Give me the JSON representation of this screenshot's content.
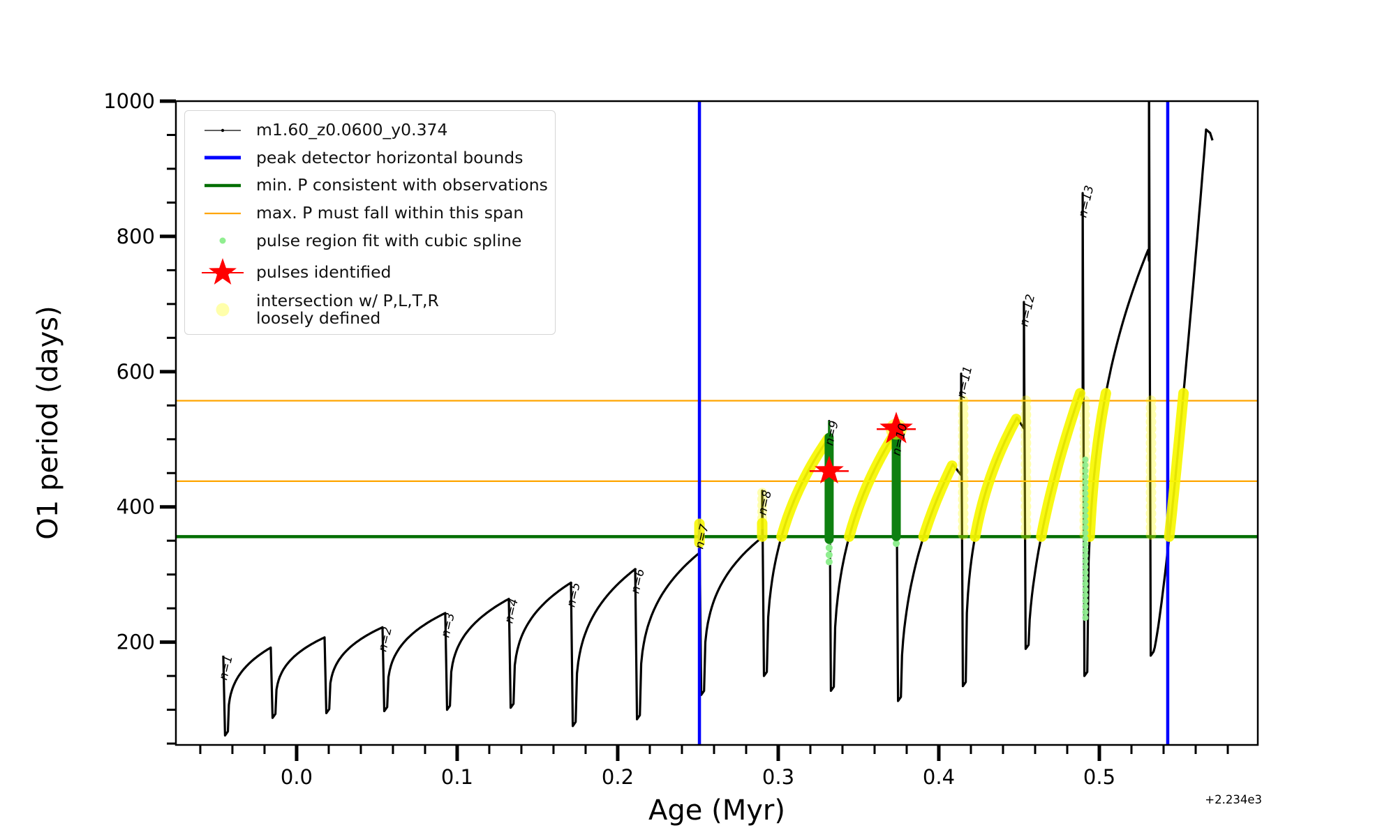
{
  "axes": {
    "xlabel": "Age (Myr)",
    "ylabel": "O1 period (days)",
    "x_offset_label": "+2.234e3",
    "xlim": [
      -0.0752,
      0.5987
    ],
    "ylim": [
      48,
      1000
    ],
    "x_ticks": [
      {
        "v": 0.0,
        "label": "0.0"
      },
      {
        "v": 0.1,
        "label": "0.1"
      },
      {
        "v": 0.2,
        "label": "0.2"
      },
      {
        "v": 0.3,
        "label": "0.3"
      },
      {
        "v": 0.4,
        "label": "0.4"
      },
      {
        "v": 0.5,
        "label": "0.5"
      }
    ],
    "x_minor_step": 0.02,
    "y_ticks": [
      {
        "v": 200,
        "label": "200"
      },
      {
        "v": 400,
        "label": "400"
      },
      {
        "v": 600,
        "label": "600"
      },
      {
        "v": 800,
        "label": "800"
      },
      {
        "v": 1000,
        "label": "1000"
      }
    ],
    "y_minor_step": 50,
    "grid": false
  },
  "colors": {
    "curve": "#000000",
    "peak_bounds": "#0000ff",
    "min_P": "#006e00",
    "max_P": "#ffa500",
    "pulse_fit": "#90ee90",
    "pulse_star": "#ff0000",
    "intersection": "#f7f700",
    "intersection_pale": "rgba(255,255,0,0.32)",
    "column_green": "#0e8010"
  },
  "legend": {
    "entries": [
      {
        "label": "m1.60_z0.0600_y0.374",
        "type": "line-dot",
        "color": "#000000"
      },
      {
        "label": "peak detector horizontal bounds",
        "type": "line",
        "color": "#0000ff",
        "lw": 5
      },
      {
        "label": "min. P consistent with observations",
        "type": "line",
        "color": "#006e00",
        "lw": 4.5
      },
      {
        "label": "max. P must fall within this span",
        "type": "line",
        "color": "#ffa500",
        "lw": 2.2
      },
      {
        "label": "pulse region fit with cubic spline",
        "type": "dot",
        "color": "#90ee90",
        "r": 4.5
      },
      {
        "label": "pulses identified",
        "type": "star",
        "color": "#ff0000"
      },
      {
        "label": "intersection w/ P,L,T,R\nloosely defined",
        "type": "dot",
        "color": "rgba(255,255,0,0.33)",
        "r": 9.5
      }
    ]
  },
  "chart_data": {
    "type": "line",
    "title": "",
    "series": [
      {
        "name": "m1.60_z0.0600_y0.374",
        "color": "#000000"
      }
    ],
    "xlabel": "Age (Myr)",
    "ylabel": "O1 period (days)",
    "x_axis_offset": "+2.234e3",
    "xlim": [
      -0.0752,
      0.5987
    ],
    "ylim": [
      48,
      1000
    ],
    "reference_lines": {
      "peak_detector_bounds_age": [
        0.2509,
        0.5426
      ],
      "min_P_days": 356,
      "max_P_span_days": [
        438,
        557
      ]
    },
    "pulses_identified": [
      {
        "pulse": "n=9",
        "age": 0.332,
        "P_days": 453
      },
      {
        "pulse": "n=10",
        "age": 0.3735,
        "P_days": 515
      }
    ],
    "peaks": [
      {
        "label": "n=1",
        "age": -0.046,
        "P_days": 180
      },
      {
        "label": "n=2",
        "age": 0.053,
        "P_days": 222
      },
      {
        "label": "n=3",
        "age": 0.093,
        "P_days": 243
      },
      {
        "label": "n=4",
        "age": 0.132,
        "P_days": 264
      },
      {
        "label": "n=5",
        "age": 0.171,
        "P_days": 288
      },
      {
        "label": "n=6",
        "age": 0.211,
        "P_days": 308
      },
      {
        "label": "n=7",
        "age": 0.251,
        "P_days": 374
      },
      {
        "label": "n=8",
        "age": 0.29,
        "P_days": 424
      },
      {
        "label": "n=9",
        "age": 0.332,
        "P_days": 527
      },
      {
        "label": "n=10",
        "age": 0.373,
        "P_days": 515
      },
      {
        "label": "n=11",
        "age": 0.414,
        "P_days": 597
      },
      {
        "label": "n=12",
        "age": 0.453,
        "P_days": 703
      },
      {
        "label": "n=13",
        "age": 0.49,
        "P_days": 864
      }
    ],
    "cycles": [
      {
        "a": -0.0457,
        "p": 180,
        "d": 62,
        "k": 0.3,
        "label": "n=1",
        "first": true
      },
      {
        "a": -0.0161,
        "p": 192,
        "d": 88,
        "k": 0.3
      },
      {
        "a": 0.0174,
        "p": 207,
        "d": 95,
        "k": 0.3
      },
      {
        "a": 0.0535,
        "p": 222,
        "d": 98,
        "k": 0.3,
        "label": "n=2"
      },
      {
        "a": 0.0926,
        "p": 243,
        "d": 100,
        "k": 0.3,
        "label": "n=3"
      },
      {
        "a": 0.1322,
        "p": 264,
        "d": 103,
        "k": 0.3,
        "label": "n=4"
      },
      {
        "a": 0.1709,
        "p": 288,
        "d": 76,
        "k": 0.3,
        "label": "n=5"
      },
      {
        "a": 0.2109,
        "p": 308,
        "d": 86,
        "k": 0.3,
        "label": "n=6"
      },
      {
        "a": 0.2509,
        "p": 332,
        "s": 374,
        "d": 122,
        "k": 0.3,
        "label": "n=7",
        "blob": [
          347,
          375
        ]
      },
      {
        "a": 0.29,
        "p": 355,
        "s": 424,
        "d": 150,
        "k": 0.3,
        "label": "n=8",
        "blob": [
          356,
          376
        ],
        "blob_rings": [
          374,
          424
        ]
      },
      {
        "a": 0.3317,
        "p": 503,
        "s": 527,
        "d": 128,
        "k": 0.38,
        "label": "n=9",
        "arc_yellow": true,
        "column": [
          352,
          503
        ],
        "column_spike": 527,
        "mint": [
          317,
          350
        ],
        "star": 453
      },
      {
        "a": 0.3735,
        "p": 512,
        "d": 113,
        "k": 0.38,
        "label": "n=10",
        "arc_yellow": true,
        "column": [
          356,
          515
        ],
        "mint": [
          336,
          346
        ],
        "star": 515,
        "star_glow": true
      },
      {
        "a": 0.4087,
        "p": 463,
        "s": 597,
        "sa": 0.4139,
        "d": 135,
        "k": 0.45,
        "label": "n=11",
        "arc_yellow": true,
        "drop_rings": true
      },
      {
        "a": 0.4487,
        "p": 532,
        "s": 703,
        "sa": 0.453,
        "d": 190,
        "k": 0.35,
        "label": "n=12",
        "arc_yellow": true,
        "drop_rings": true
      },
      {
        "a": 0.4883,
        "p": 570,
        "s": 864,
        "sa": 0.4896,
        "d": 150,
        "k": 0.6,
        "label": "n=13",
        "arc_yellow": true,
        "drop_rings": true,
        "drop_mint": [
          230,
          470
        ]
      },
      {
        "a": 0.5304,
        "p": 780,
        "s": 1055,
        "sa": 0.5309,
        "d": 180,
        "k": 0.35,
        "arc_yellow": true,
        "drop_rings": true
      },
      {
        "a": 0.5665,
        "p": 958,
        "k": 1.25,
        "arc_yellow": true,
        "end": true
      }
    ]
  }
}
